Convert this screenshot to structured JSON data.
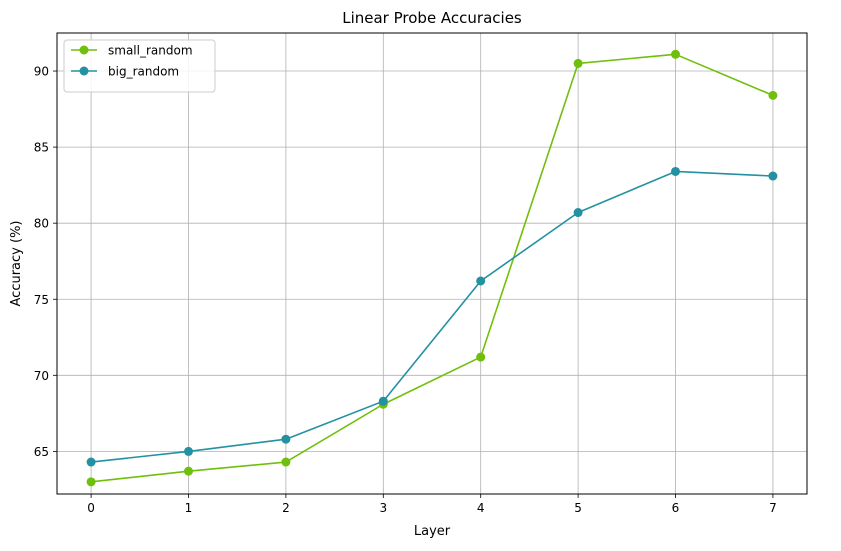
{
  "chart_data": {
    "type": "line",
    "title": "Linear Probe Accuracies",
    "xlabel": "Layer",
    "ylabel": "Accuracy (%)",
    "x": [
      0,
      1,
      2,
      3,
      4,
      5,
      6,
      7
    ],
    "xlim": [
      -0.35,
      7.35
    ],
    "ylim": [
      62.2,
      92.5
    ],
    "xticks": [
      0,
      1,
      2,
      3,
      4,
      5,
      6,
      7
    ],
    "yticks": [
      65,
      70,
      75,
      80,
      85,
      90
    ],
    "grid": true,
    "legend_position": "top-left",
    "marker": "circle",
    "series": [
      {
        "name": "small_random",
        "color": "#70bf0c",
        "values": [
          63.0,
          63.7,
          64.3,
          68.1,
          71.2,
          90.5,
          91.1,
          88.4
        ]
      },
      {
        "name": "big_random",
        "color": "#2391a2",
        "values": [
          64.3,
          65.0,
          65.8,
          68.3,
          76.2,
          80.7,
          83.4,
          83.1
        ]
      }
    ]
  }
}
